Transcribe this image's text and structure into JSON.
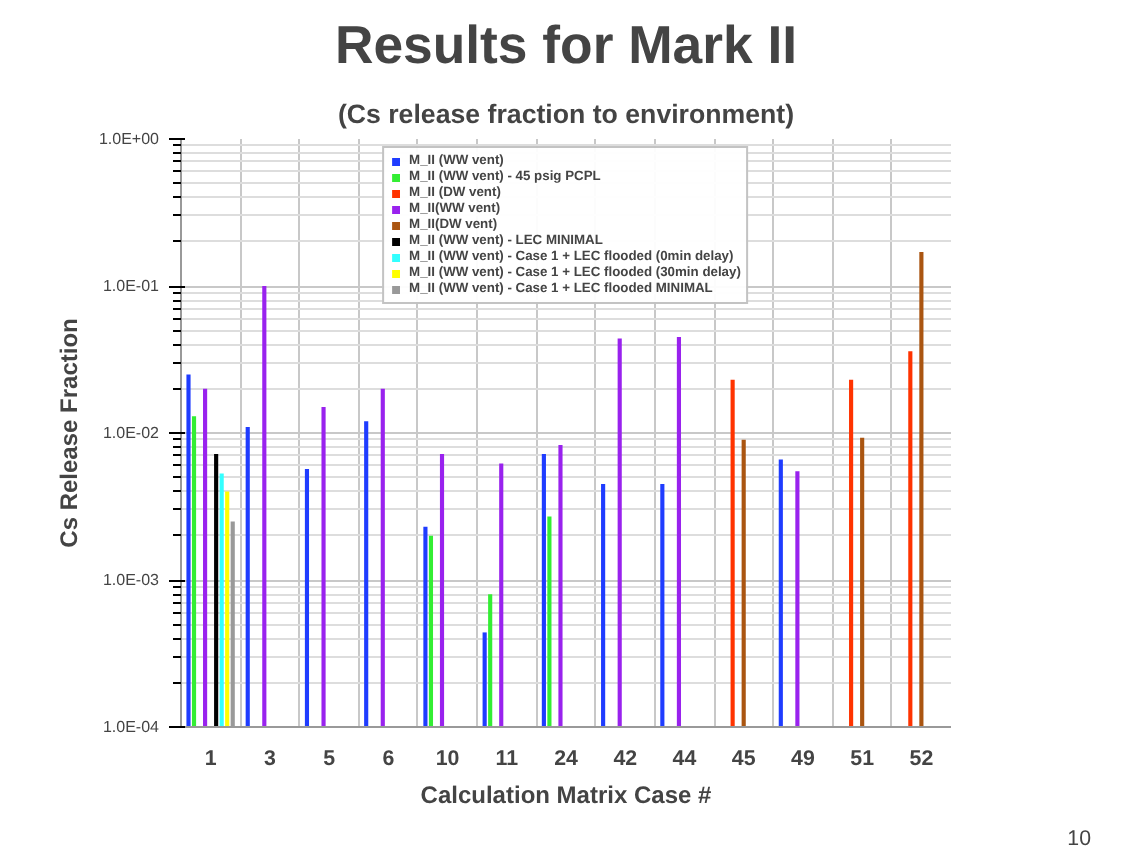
{
  "chart_data": {
    "type": "bar",
    "title": "Results for Mark II",
    "subtitle": "(Cs release fraction to environment)",
    "xlabel": "Calculation Matrix Case #",
    "ylabel": "Cs Release Fraction",
    "categories": [
      "1",
      "3",
      "5",
      "6",
      "10",
      "11",
      "24",
      "42",
      "44",
      "45",
      "49",
      "51",
      "52"
    ],
    "log": true,
    "ylim": [
      0.0001,
      1
    ],
    "yticks": [
      {
        "value": 0.0001,
        "label": "1.0E-04"
      },
      {
        "value": 0.001,
        "label": "1.0E-03"
      },
      {
        "value": 0.01,
        "label": "1.0E-02"
      },
      {
        "value": 0.1,
        "label": "1.0E-01"
      },
      {
        "value": 1,
        "label": "1.0E+00"
      }
    ],
    "grid": true,
    "legend": "top",
    "annotations": [
      "10"
    ],
    "series": [
      {
        "name": "M_II (WW vent)",
        "color": "#1f3cff",
        "values": [
          0.025,
          0.011,
          0.0057,
          0.012,
          0.0023,
          0.00044,
          0.0072,
          0.0045,
          0.0045,
          null,
          0.0066,
          null,
          null
        ]
      },
      {
        "name": "M_II (WW vent) - 45 psig PCPL",
        "color": "#33ee33",
        "values": [
          0.013,
          null,
          null,
          null,
          0.002,
          0.0008,
          0.0027,
          null,
          null,
          null,
          null,
          null,
          null
        ]
      },
      {
        "name": "M_II (DW vent)",
        "color": "#ff3300",
        "values": [
          null,
          null,
          null,
          null,
          null,
          null,
          null,
          null,
          null,
          0.023,
          null,
          0.023,
          0.036
        ]
      },
      {
        "name": "M_II(WW vent)",
        "color": "#9922ee",
        "values": [
          0.02,
          0.1,
          0.015,
          0.02,
          0.0072,
          0.0062,
          0.0083,
          0.044,
          0.045,
          null,
          0.0055,
          null,
          null
        ]
      },
      {
        "name": "M_II(DW vent)",
        "color": "#aa5511",
        "values": [
          null,
          null,
          null,
          null,
          null,
          null,
          null,
          null,
          null,
          0.009,
          null,
          0.0093,
          0.17
        ]
      },
      {
        "name": "M_II (WW vent) - LEC MINIMAL",
        "color": "#000000",
        "values": [
          0.0072,
          null,
          null,
          null,
          null,
          null,
          null,
          null,
          null,
          null,
          null,
          null,
          null
        ]
      },
      {
        "name": "M_II (WW vent) - Case 1 + LEC flooded (0min delay)",
        "color": "#33ffff",
        "values": [
          0.0053,
          null,
          null,
          null,
          null,
          null,
          null,
          null,
          null,
          null,
          null,
          null,
          null
        ]
      },
      {
        "name": "M_II (WW vent) - Case 1 + LEC flooded (30min delay)",
        "color": "#ffff00",
        "values": [
          0.004,
          null,
          null,
          null,
          null,
          null,
          null,
          null,
          null,
          null,
          null,
          null,
          null
        ]
      },
      {
        "name": "M_II (WW vent) - Case 1 + LEC flooded MINIMAL",
        "color": "#999999",
        "values": [
          0.0025,
          null,
          null,
          null,
          null,
          null,
          null,
          null,
          null,
          null,
          null,
          null,
          null
        ]
      }
    ]
  }
}
